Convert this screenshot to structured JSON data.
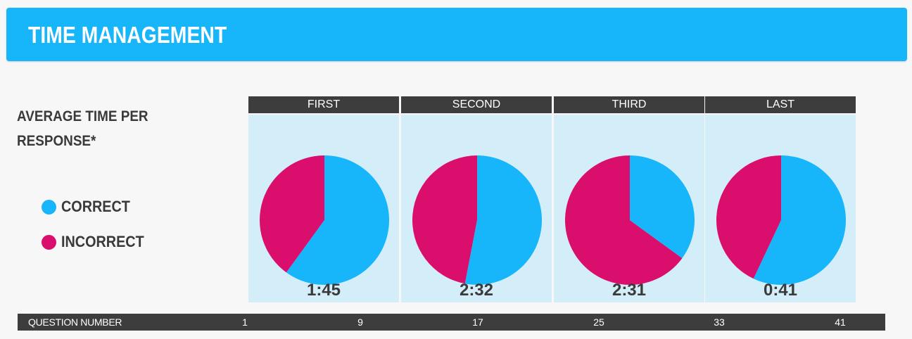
{
  "header": {
    "title": "TIME MANAGEMENT"
  },
  "side": {
    "title": "AVERAGE TIME PER RESPONSE*"
  },
  "legend": [
    {
      "label": "CORRECT",
      "color": "#17b5f9"
    },
    {
      "label": "INCORRECT",
      "color": "#d90e6d"
    }
  ],
  "chart_data": {
    "type": "pie",
    "legend": [
      "CORRECT",
      "INCORRECT"
    ],
    "colors": {
      "correct": "#17b5f9",
      "incorrect": "#d90e6d"
    },
    "panels": [
      {
        "label": "FIRST",
        "time": "1:45",
        "correct": 0.6,
        "incorrect": 0.4
      },
      {
        "label": "SECOND",
        "time": "2:32",
        "correct": 0.53,
        "incorrect": 0.47
      },
      {
        "label": "THIRD",
        "time": "2:31",
        "correct": 0.35,
        "incorrect": 0.65
      },
      {
        "label": "LAST",
        "time": "0:41",
        "correct": 0.57,
        "incorrect": 0.43
      }
    ]
  },
  "axis": {
    "label": "QUESTION NUMBER",
    "ticks": [
      "1",
      "9",
      "17",
      "25",
      "33",
      "41"
    ]
  }
}
